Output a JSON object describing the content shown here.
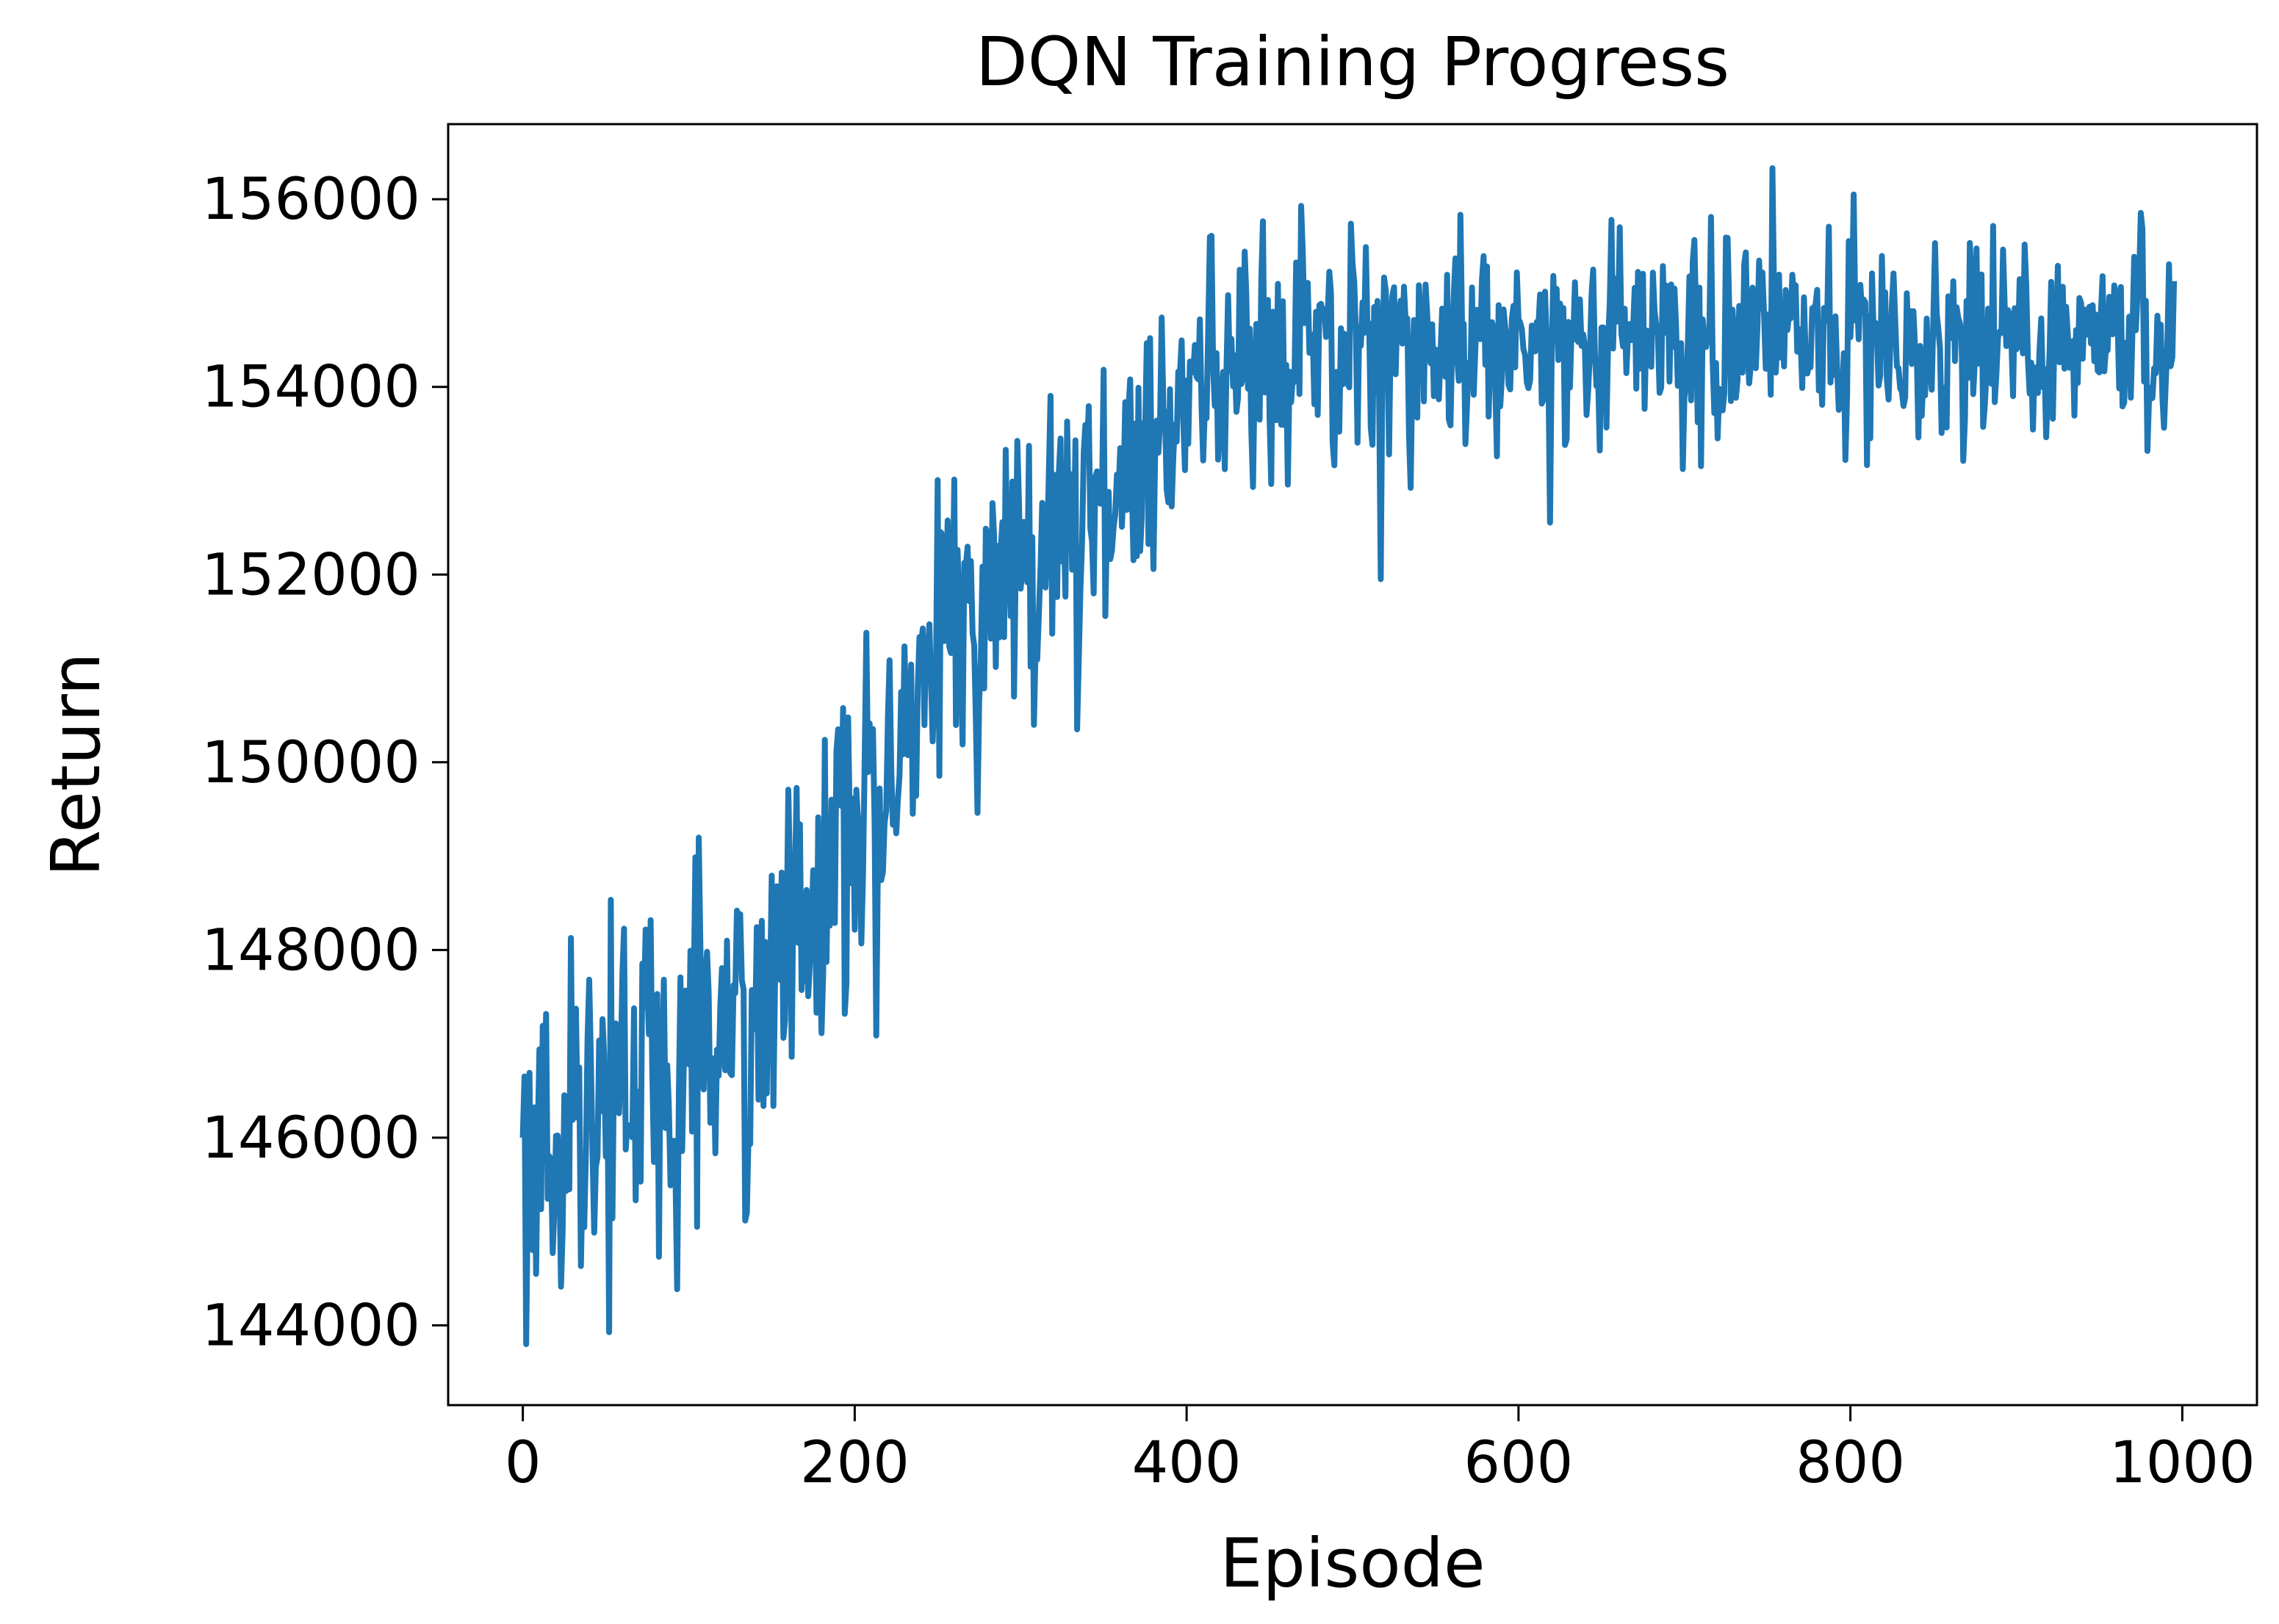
{
  "chart_data": {
    "type": "line",
    "title": "DQN Training Progress",
    "xlabel": "Episode",
    "ylabel": "Return",
    "xlim": [
      -45,
      1045
    ],
    "ylim": [
      143150,
      156800
    ],
    "xticks": [
      0,
      200,
      400,
      600,
      800,
      1000
    ],
    "xtick_labels": [
      "0",
      "200",
      "400",
      "600",
      "800",
      "1000"
    ],
    "yticks": [
      144000,
      146000,
      148000,
      150000,
      152000,
      154000,
      156000
    ],
    "ytick_labels": [
      "144000",
      "146000",
      "148000",
      "150000",
      "152000",
      "154000",
      "156000"
    ],
    "grid": false,
    "legend": "none",
    "line_color": "#1f77b4",
    "series": [
      {
        "x_start": 0,
        "x_step": 5,
        "values": [
          146000,
          144300,
          146300,
          145400,
          146400,
          145700,
          147100,
          145300,
          146800,
          145900,
          147300,
          146200,
          147700,
          145800,
          146600,
          147900,
          146300,
          146800,
          145400,
          147400,
          146700,
          146900,
          147800,
          146200,
          148300,
          146900,
          147600,
          147100,
          147700,
          146800,
          148200,
          147500,
          148300,
          148500,
          148000,
          148800,
          147400,
          149000,
          149300,
          148800,
          148900,
          148600,
          149800,
          148600,
          150200,
          149700,
          150500,
          150100,
          150300,
          150800,
          151200,
          151600,
          152000,
          151400,
          151900,
          151100,
          152200,
          151500,
          152500,
          152100,
          152700,
          152000,
          151800,
          152500,
          152900,
          152100,
          152800,
          152300,
          153300,
          152600,
          153200,
          152200,
          152900,
          153400,
          152600,
          153300,
          152700,
          153600,
          153000,
          153500,
          154300,
          153600,
          154000,
          154500,
          153800,
          154700,
          154100,
          155000,
          153900,
          154600,
          154300,
          154800,
          154000,
          154500,
          154700,
          154100,
          154600,
          154900,
          154200,
          154600,
          154400,
          154800,
          154100,
          154700,
          154300,
          154600,
          155000,
          154200,
          154500,
          154800,
          154300,
          154600,
          154100,
          154700,
          154400,
          154900,
          154200,
          154500,
          154800,
          154300,
          154600,
          154400,
          154700,
          154100,
          154500,
          154800,
          154200,
          154600,
          154300,
          154700,
          154000,
          154500,
          154800,
          154300,
          154600,
          154200,
          154900,
          154400,
          154600,
          154100,
          154500,
          154700,
          154300,
          154800,
          154400,
          154600,
          154200,
          154700,
          154400,
          154900,
          154300,
          154500,
          154700,
          154100,
          154600,
          154400,
          154800,
          154200,
          154600,
          154300,
          154700,
          154500,
          154100,
          154800,
          154400,
          154600,
          154200,
          154700,
          154300,
          154500,
          154900,
          154100,
          154600,
          154400,
          154800,
          154300,
          154500,
          154700,
          154200,
          154600,
          154400,
          154800,
          154100,
          154500,
          154700,
          154300,
          154600,
          154200,
          154800,
          154400,
          154600,
          154300,
          154700,
          154000,
          154500,
          154800,
          154300,
          154600,
          154200,
          154700
        ]
      }
    ],
    "noise_seed": 7
  }
}
